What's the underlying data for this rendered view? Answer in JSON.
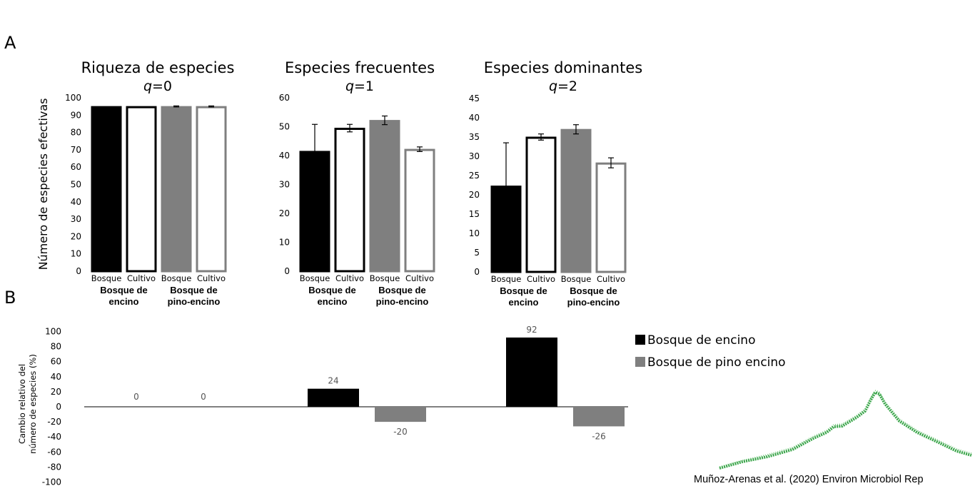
{
  "panels": {
    "a": "A",
    "b": "B"
  },
  "y_axis_label_a": "Número de especies efectivas",
  "chart_data": [
    {
      "type": "bar",
      "title": "Riqueza de especies",
      "q_label": {
        "prefix": "q",
        "suffix": "=0"
      },
      "categories": [
        "Bosque",
        "Cultivo",
        "Bosque",
        "Cultivo"
      ],
      "groups": [
        "Bosque de encino",
        "Bosque de pino-encino"
      ],
      "values": [
        95,
        95,
        95,
        95
      ],
      "errors": [
        0,
        0,
        0.3,
        0.3
      ],
      "ylim": [
        0,
        100
      ],
      "yticks": [
        0,
        10,
        20,
        30,
        40,
        50,
        60,
        70,
        80,
        90,
        100
      ],
      "grid": false,
      "bar_styles": [
        {
          "fill": "#000000",
          "stroke": "#000000"
        },
        {
          "fill": "#ffffff",
          "stroke": "#000000"
        },
        {
          "fill": "#7f7f7f",
          "stroke": "#7f7f7f"
        },
        {
          "fill": "#ffffff",
          "stroke": "#7f7f7f"
        }
      ]
    },
    {
      "type": "bar",
      "title": "Especies frecuentes",
      "q_label": {
        "prefix": "q",
        "suffix": "=1"
      },
      "categories": [
        "Bosque",
        "Cultivo",
        "Bosque",
        "Cultivo"
      ],
      "groups": [
        "Bosque de encino",
        "Bosque de pino-encino"
      ],
      "values": [
        41.5,
        49.5,
        52.2,
        42.2
      ],
      "errors": [
        9.3,
        1.3,
        1.5,
        0.8
      ],
      "ylim": [
        0,
        60
      ],
      "yticks": [
        0,
        10,
        20,
        30,
        40,
        50,
        60
      ],
      "grid": false,
      "bar_styles": [
        {
          "fill": "#000000",
          "stroke": "#000000"
        },
        {
          "fill": "#ffffff",
          "stroke": "#000000"
        },
        {
          "fill": "#7f7f7f",
          "stroke": "#7f7f7f"
        },
        {
          "fill": "#ffffff",
          "stroke": "#7f7f7f"
        }
      ]
    },
    {
      "type": "bar",
      "title": "Especies dominantes",
      "q_label": {
        "prefix": "q",
        "suffix": "=2"
      },
      "categories": [
        "Bosque",
        "Cultivo",
        "Bosque",
        "Cultivo"
      ],
      "groups": [
        "Bosque de encino",
        "Bosque de pino-encino"
      ],
      "values": [
        22.3,
        35.0,
        37.0,
        28.3
      ],
      "errors": [
        11.2,
        0.8,
        1.2,
        1.3
      ],
      "ylim": [
        0,
        45
      ],
      "yticks": [
        0,
        5,
        10,
        15,
        20,
        25,
        30,
        35,
        40,
        45
      ],
      "grid": false,
      "bar_styles": [
        {
          "fill": "#000000",
          "stroke": "#000000"
        },
        {
          "fill": "#ffffff",
          "stroke": "#000000"
        },
        {
          "fill": "#7f7f7f",
          "stroke": "#7f7f7f"
        },
        {
          "fill": "#ffffff",
          "stroke": "#7f7f7f"
        }
      ]
    },
    {
      "type": "bar",
      "ylabel": "Cambio relativo del número de especies (%)",
      "ylabel_lines": [
        "Cambio relativo del",
        "número de especies (%)"
      ],
      "ylim": [
        -100,
        100
      ],
      "yticks": [
        -100,
        -80,
        -60,
        -40,
        -20,
        0,
        20,
        40,
        60,
        80,
        100
      ],
      "grid": false,
      "legend_position": "right",
      "groups": 3,
      "series": [
        {
          "name": "Bosque de encino",
          "color": "#000000",
          "values": [
            0,
            24,
            92
          ]
        },
        {
          "name": "Bosque de pino encino",
          "color": "#7f7f7f",
          "values": [
            0,
            -20,
            -26
          ]
        }
      ],
      "data_labels": [
        [
          "0",
          "24",
          "92"
        ],
        [
          "0",
          "-20",
          "-26"
        ]
      ]
    }
  ],
  "credit": "Muñoz-Arenas et al. (2020) Environ Microbiol Rep",
  "logo": {
    "name": "mountain-silhouette",
    "color": "#3aa54a"
  }
}
